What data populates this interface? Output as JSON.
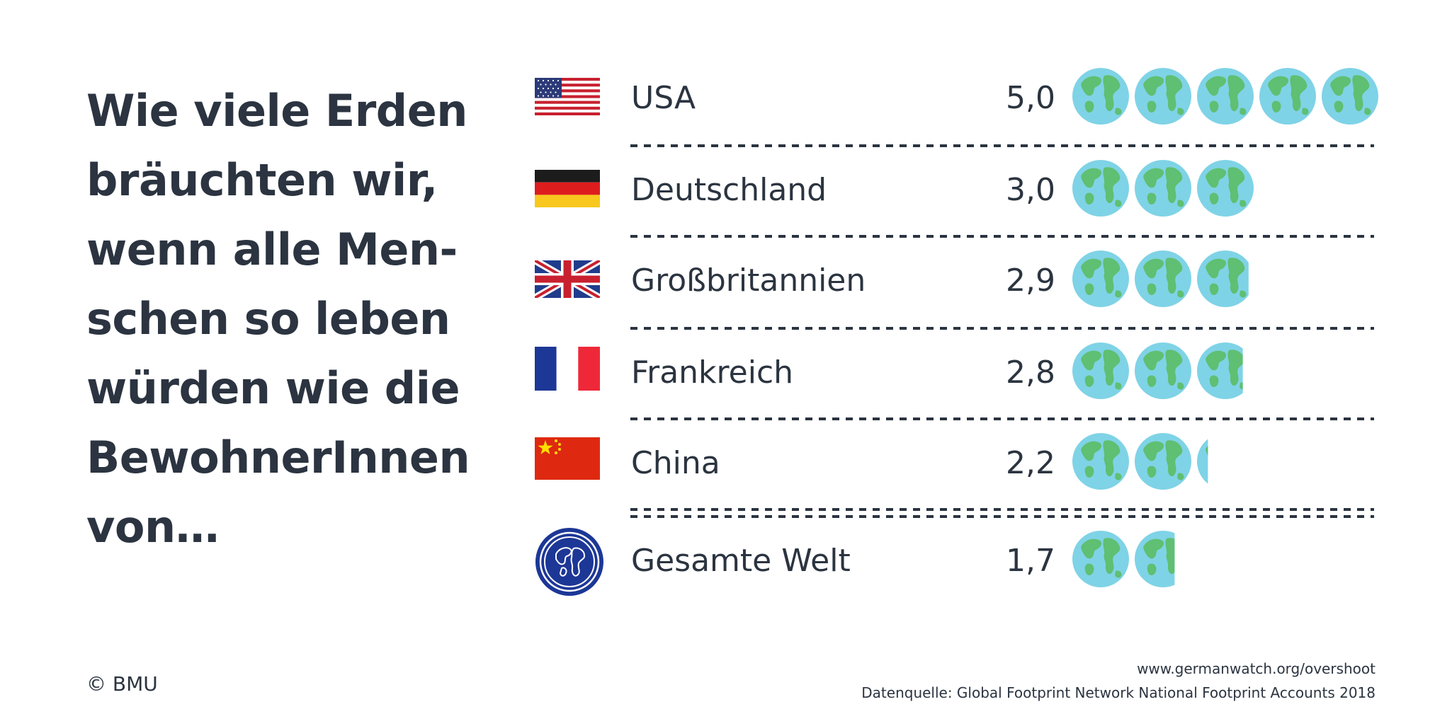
{
  "headline": {
    "lines": [
      "Wie viele Erden",
      "bräuchten wir,",
      "wenn alle Men-",
      "schen so leben",
      "würden wie die",
      "BewohnerInnen",
      "von…"
    ]
  },
  "chart_data": {
    "type": "bar",
    "categories": [
      "USA",
      "Deutschland",
      "Großbritannien",
      "Frankreich",
      "China",
      "Gesamte Welt"
    ],
    "values": [
      5.0,
      3.0,
      2.9,
      2.8,
      2.2,
      1.7
    ],
    "value_labels": [
      "5,0",
      "3,0",
      "2,9",
      "2,8",
      "2,2",
      "1,7"
    ],
    "unit_glyph": "earth-icon",
    "max_units": 5
  },
  "colors": {
    "text": "#2b3440",
    "ocean": "#7fd3e6",
    "land": "#5fbf72"
  },
  "footer": {
    "copyright": "© BMU",
    "url": "www.germanwatch.org/overshoot",
    "source": "Datenquelle: Global Footprint Network National Footprint Accounts 2018"
  }
}
